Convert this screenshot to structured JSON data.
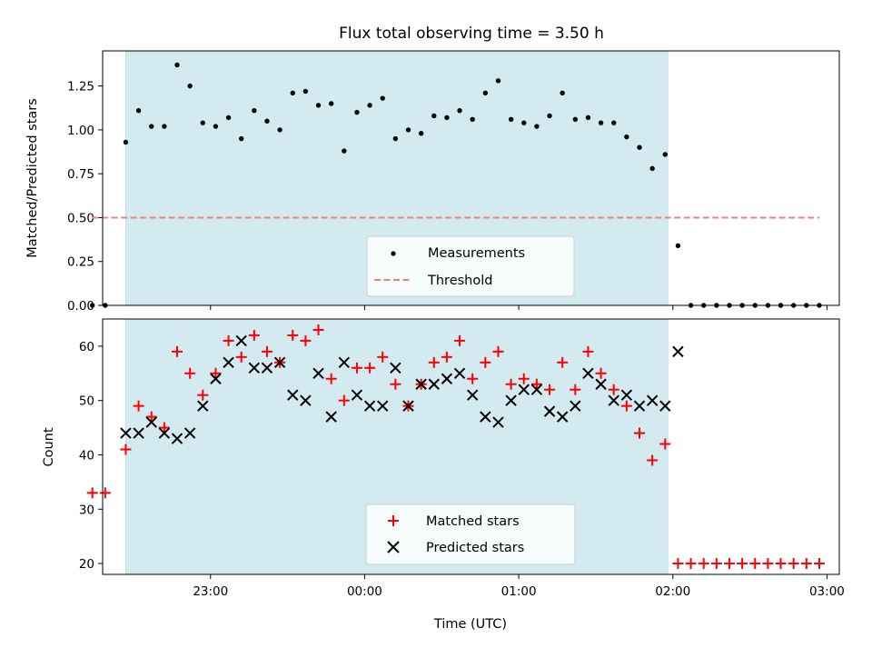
{
  "chart_data": [
    {
      "type": "scatter",
      "title": "Flux total observing time = 3.50 h",
      "xlabel": "",
      "ylabel": "Matched/Predicted stars",
      "xlim_hours": [
        22.3,
        27.08
      ],
      "ylim": [
        0,
        1.45
      ],
      "yticks": [
        0.0,
        0.25,
        0.5,
        0.75,
        1.0,
        1.25
      ],
      "ytick_labels": [
        "0.00",
        "0.25",
        "0.50",
        "0.75",
        "1.00",
        "1.25"
      ],
      "shaded_region": {
        "x_start": "22:27",
        "x_end": "01:58",
        "color": "#d3eaf0"
      },
      "legend_position": "lower-center",
      "series": [
        {
          "name": "Measurements",
          "marker": "dot",
          "color": "#000000",
          "x": [
            "22:14",
            "22:19",
            "22:27",
            "22:32",
            "22:37",
            "22:42",
            "22:47",
            "22:52",
            "22:57",
            "23:02",
            "23:07",
            "23:12",
            "23:17",
            "23:22",
            "23:27",
            "23:32",
            "23:37",
            "23:42",
            "23:47",
            "23:52",
            "23:57",
            "00:02",
            "00:07",
            "00:12",
            "00:17",
            "00:22",
            "00:27",
            "00:32",
            "00:37",
            "00:42",
            "00:47",
            "00:52",
            "00:57",
            "01:02",
            "01:07",
            "01:12",
            "01:17",
            "01:22",
            "01:27",
            "01:32",
            "01:37",
            "01:42",
            "01:47",
            "01:52",
            "01:57",
            "02:02",
            "02:07",
            "02:12",
            "02:17",
            "02:22",
            "02:27",
            "02:32",
            "02:37",
            "02:42",
            "02:47",
            "02:52",
            "02:57"
          ],
          "values": [
            0.0,
            0.0,
            0.93,
            1.11,
            1.02,
            1.02,
            1.37,
            1.25,
            1.04,
            1.02,
            1.07,
            0.95,
            1.11,
            1.05,
            1.0,
            1.21,
            1.22,
            1.14,
            1.15,
            0.88,
            1.1,
            1.14,
            1.18,
            0.95,
            1.0,
            0.98,
            1.08,
            1.07,
            1.11,
            1.06,
            1.21,
            1.28,
            1.06,
            1.04,
            1.02,
            1.08,
            1.21,
            1.06,
            1.07,
            1.04,
            1.04,
            0.96,
            0.9,
            0.78,
            0.86,
            0.34,
            0.0,
            0.0,
            0.0,
            0.0,
            0.0,
            0.0,
            0.0,
            0.0,
            0.0,
            0.0,
            0.0
          ]
        },
        {
          "name": "Threshold",
          "marker": "dashed-line",
          "color": "#f08080",
          "x": [
            "22:14",
            "02:57"
          ],
          "values": [
            0.5,
            0.5
          ]
        }
      ]
    },
    {
      "type": "scatter",
      "title": "",
      "xlabel": "Time (UTC)",
      "ylabel": "Count",
      "xlim_hours": [
        22.3,
        27.08
      ],
      "ylim": [
        18,
        65
      ],
      "yticks": [
        20,
        30,
        40,
        50,
        60
      ],
      "ytick_labels": [
        "20",
        "30",
        "40",
        "50",
        "60"
      ],
      "xticks": [
        "23:00",
        "00:00",
        "01:00",
        "02:00",
        "03:00"
      ],
      "shaded_region": {
        "x_start": "22:27",
        "x_end": "01:58",
        "color": "#d3eaf0"
      },
      "legend_position": "lower-center",
      "series": [
        {
          "name": "Matched stars",
          "marker": "plus",
          "color": "#ff0000",
          "x": [
            "22:14",
            "22:19",
            "22:27",
            "22:32",
            "22:37",
            "22:42",
            "22:47",
            "22:52",
            "22:57",
            "23:02",
            "23:07",
            "23:12",
            "23:17",
            "23:22",
            "23:27",
            "23:32",
            "23:37",
            "23:42",
            "23:47",
            "23:52",
            "23:57",
            "00:02",
            "00:07",
            "00:12",
            "00:17",
            "00:22",
            "00:27",
            "00:32",
            "00:37",
            "00:42",
            "00:47",
            "00:52",
            "00:57",
            "01:02",
            "01:07",
            "01:12",
            "01:17",
            "01:22",
            "01:27",
            "01:32",
            "01:37",
            "01:42",
            "01:47",
            "01:52",
            "01:57",
            "02:02",
            "02:07",
            "02:12",
            "02:17",
            "02:22",
            "02:27",
            "02:32",
            "02:37",
            "02:42",
            "02:47",
            "02:52",
            "02:57"
          ],
          "values": [
            33,
            33,
            41,
            49,
            47,
            45,
            59,
            55,
            51,
            55,
            61,
            58,
            62,
            59,
            57,
            62,
            61,
            63,
            54,
            50,
            56,
            56,
            58,
            53,
            49,
            53,
            57,
            58,
            61,
            54,
            57,
            59,
            53,
            54,
            53,
            52,
            57,
            52,
            59,
            55,
            52,
            49,
            44,
            39,
            42,
            20,
            20,
            20,
            20,
            20,
            20,
            20,
            20,
            20,
            20,
            20,
            20
          ]
        },
        {
          "name": "Predicted stars",
          "marker": "x",
          "color": "#000000",
          "x": [
            "22:27",
            "22:32",
            "22:37",
            "22:42",
            "22:47",
            "22:52",
            "22:57",
            "23:02",
            "23:07",
            "23:12",
            "23:17",
            "23:22",
            "23:27",
            "23:32",
            "23:37",
            "23:42",
            "23:47",
            "23:52",
            "23:57",
            "00:02",
            "00:07",
            "00:12",
            "00:17",
            "00:22",
            "00:27",
            "00:32",
            "00:37",
            "00:42",
            "00:47",
            "00:52",
            "00:57",
            "01:02",
            "01:07",
            "01:12",
            "01:17",
            "01:22",
            "01:27",
            "01:32",
            "01:37",
            "01:42",
            "01:47",
            "01:52",
            "01:57",
            "02:02"
          ],
          "values": [
            44,
            44,
            46,
            44,
            43,
            44,
            49,
            54,
            57,
            61,
            56,
            56,
            57,
            51,
            50,
            55,
            47,
            57,
            51,
            49,
            49,
            56,
            49,
            53,
            53,
            54,
            55,
            51,
            47,
            46,
            50,
            52,
            52,
            48,
            47,
            49,
            55,
            53,
            50,
            51,
            49,
            50,
            49,
            59
          ]
        }
      ]
    }
  ]
}
